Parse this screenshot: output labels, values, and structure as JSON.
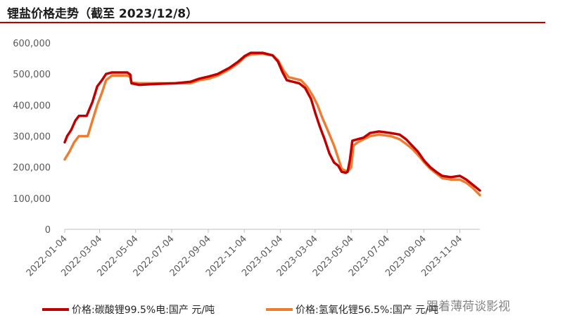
{
  "title": "锂盐价格走势（截至 2023/12/8）",
  "watermark": "跟着薄荷谈影视",
  "colors": {
    "accent": "#c00000"
  },
  "chart_data": {
    "type": "line",
    "title": "锂盐价格走势（截至 2023/12/8）",
    "y_ticks": [
      "600,000",
      "500,000",
      "400,000",
      "300,000",
      "200,000",
      "100,000",
      "0"
    ],
    "ylim": [
      0,
      600000
    ],
    "x_range": [
      "2022-01-04",
      "2023-12-08"
    ],
    "x_ticks": [
      "2022-01-04",
      "2022-03-04",
      "2022-05-04",
      "2022-07-04",
      "2022-09-04",
      "2022-11-04",
      "2023-01-04",
      "2023-03-04",
      "2023-05-04",
      "2023-07-04",
      "2023-09-04",
      "2023-11-04"
    ],
    "grid": false,
    "legend": "bottom",
    "series": [
      {
        "name": "价格:碳酸锂99.5%电:国产 元/吨",
        "color": "#c00000",
        "points": [
          [
            "2022-01-04",
            280000
          ],
          [
            "2022-01-08",
            300000
          ],
          [
            "2022-01-15",
            320000
          ],
          [
            "2022-01-22",
            350000
          ],
          [
            "2022-01-28",
            365000
          ],
          [
            "2022-02-10",
            365000
          ],
          [
            "2022-02-20",
            410000
          ],
          [
            "2022-02-28",
            460000
          ],
          [
            "2022-03-08",
            480000
          ],
          [
            "2022-03-15",
            500000
          ],
          [
            "2022-03-25",
            505000
          ],
          [
            "2022-04-20",
            505000
          ],
          [
            "2022-04-25",
            498000
          ],
          [
            "2022-04-27",
            470000
          ],
          [
            "2022-05-10",
            465000
          ],
          [
            "2022-06-10",
            468000
          ],
          [
            "2022-07-10",
            470000
          ],
          [
            "2022-08-05",
            475000
          ],
          [
            "2022-08-20",
            485000
          ],
          [
            "2022-09-05",
            492000
          ],
          [
            "2022-09-20",
            500000
          ],
          [
            "2022-10-10",
            520000
          ],
          [
            "2022-10-25",
            540000
          ],
          [
            "2022-11-05",
            558000
          ],
          [
            "2022-11-15",
            568000
          ],
          [
            "2022-12-05",
            568000
          ],
          [
            "2022-12-22",
            560000
          ],
          [
            "2022-12-31",
            540000
          ],
          [
            "2023-01-08",
            505000
          ],
          [
            "2023-01-15",
            480000
          ],
          [
            "2023-01-25",
            475000
          ],
          [
            "2023-02-05",
            470000
          ],
          [
            "2023-02-15",
            455000
          ],
          [
            "2023-02-25",
            420000
          ],
          [
            "2023-03-05",
            370000
          ],
          [
            "2023-03-12",
            330000
          ],
          [
            "2023-03-20",
            290000
          ],
          [
            "2023-03-28",
            245000
          ],
          [
            "2023-04-05",
            215000
          ],
          [
            "2023-04-12",
            205000
          ],
          [
            "2023-04-18",
            185000
          ],
          [
            "2023-04-25",
            182000
          ],
          [
            "2023-04-28",
            185000
          ],
          [
            "2023-05-02",
            225000
          ],
          [
            "2023-05-06",
            285000
          ],
          [
            "2023-05-15",
            290000
          ],
          [
            "2023-05-25",
            295000
          ],
          [
            "2023-06-05",
            310000
          ],
          [
            "2023-06-20",
            315000
          ],
          [
            "2023-07-10",
            310000
          ],
          [
            "2023-07-25",
            305000
          ],
          [
            "2023-08-05",
            290000
          ],
          [
            "2023-08-15",
            270000
          ],
          [
            "2023-08-25",
            250000
          ],
          [
            "2023-09-05",
            220000
          ],
          [
            "2023-09-15",
            200000
          ],
          [
            "2023-09-25",
            185000
          ],
          [
            "2023-10-05",
            172000
          ],
          [
            "2023-10-20",
            168000
          ],
          [
            "2023-11-04",
            172000
          ],
          [
            "2023-11-15",
            160000
          ],
          [
            "2023-11-25",
            145000
          ],
          [
            "2023-12-08",
            125000
          ]
        ]
      },
      {
        "name": "价格:氢氧化锂56.5%:国产 元/吨",
        "color": "#ed7d31",
        "points": [
          [
            "2022-01-04",
            225000
          ],
          [
            "2022-01-12",
            250000
          ],
          [
            "2022-01-20",
            280000
          ],
          [
            "2022-01-28",
            300000
          ],
          [
            "2022-02-12",
            300000
          ],
          [
            "2022-02-20",
            350000
          ],
          [
            "2022-02-28",
            400000
          ],
          [
            "2022-03-08",
            440000
          ],
          [
            "2022-03-15",
            480000
          ],
          [
            "2022-03-25",
            495000
          ],
          [
            "2022-04-20",
            495000
          ],
          [
            "2022-04-25",
            490000
          ],
          [
            "2022-04-27",
            472000
          ],
          [
            "2022-05-10",
            470000
          ],
          [
            "2022-06-10",
            470000
          ],
          [
            "2022-07-10",
            470000
          ],
          [
            "2022-08-05",
            470000
          ],
          [
            "2022-08-20",
            480000
          ],
          [
            "2022-09-05",
            485000
          ],
          [
            "2022-09-20",
            495000
          ],
          [
            "2022-10-10",
            515000
          ],
          [
            "2022-10-25",
            535000
          ],
          [
            "2022-11-05",
            555000
          ],
          [
            "2022-11-15",
            563000
          ],
          [
            "2022-12-05",
            565000
          ],
          [
            "2022-12-22",
            560000
          ],
          [
            "2022-12-31",
            545000
          ],
          [
            "2023-01-10",
            510000
          ],
          [
            "2023-01-18",
            490000
          ],
          [
            "2023-01-28",
            485000
          ],
          [
            "2023-02-08",
            480000
          ],
          [
            "2023-02-18",
            460000
          ],
          [
            "2023-02-28",
            430000
          ],
          [
            "2023-03-08",
            400000
          ],
          [
            "2023-03-16",
            360000
          ],
          [
            "2023-03-25",
            320000
          ],
          [
            "2023-04-05",
            270000
          ],
          [
            "2023-04-12",
            230000
          ],
          [
            "2023-04-18",
            195000
          ],
          [
            "2023-04-25",
            188000
          ],
          [
            "2023-04-30",
            190000
          ],
          [
            "2023-05-04",
            200000
          ],
          [
            "2023-05-08",
            270000
          ],
          [
            "2023-05-15",
            280000
          ],
          [
            "2023-05-25",
            290000
          ],
          [
            "2023-06-05",
            300000
          ],
          [
            "2023-06-20",
            305000
          ],
          [
            "2023-07-10",
            300000
          ],
          [
            "2023-07-25",
            290000
          ],
          [
            "2023-08-05",
            275000
          ],
          [
            "2023-08-15",
            260000
          ],
          [
            "2023-08-25",
            240000
          ],
          [
            "2023-09-05",
            215000
          ],
          [
            "2023-09-15",
            195000
          ],
          [
            "2023-09-25",
            180000
          ],
          [
            "2023-10-05",
            165000
          ],
          [
            "2023-10-20",
            160000
          ],
          [
            "2023-11-04",
            160000
          ],
          [
            "2023-11-15",
            150000
          ],
          [
            "2023-11-25",
            135000
          ],
          [
            "2023-12-08",
            110000
          ]
        ]
      }
    ]
  }
}
